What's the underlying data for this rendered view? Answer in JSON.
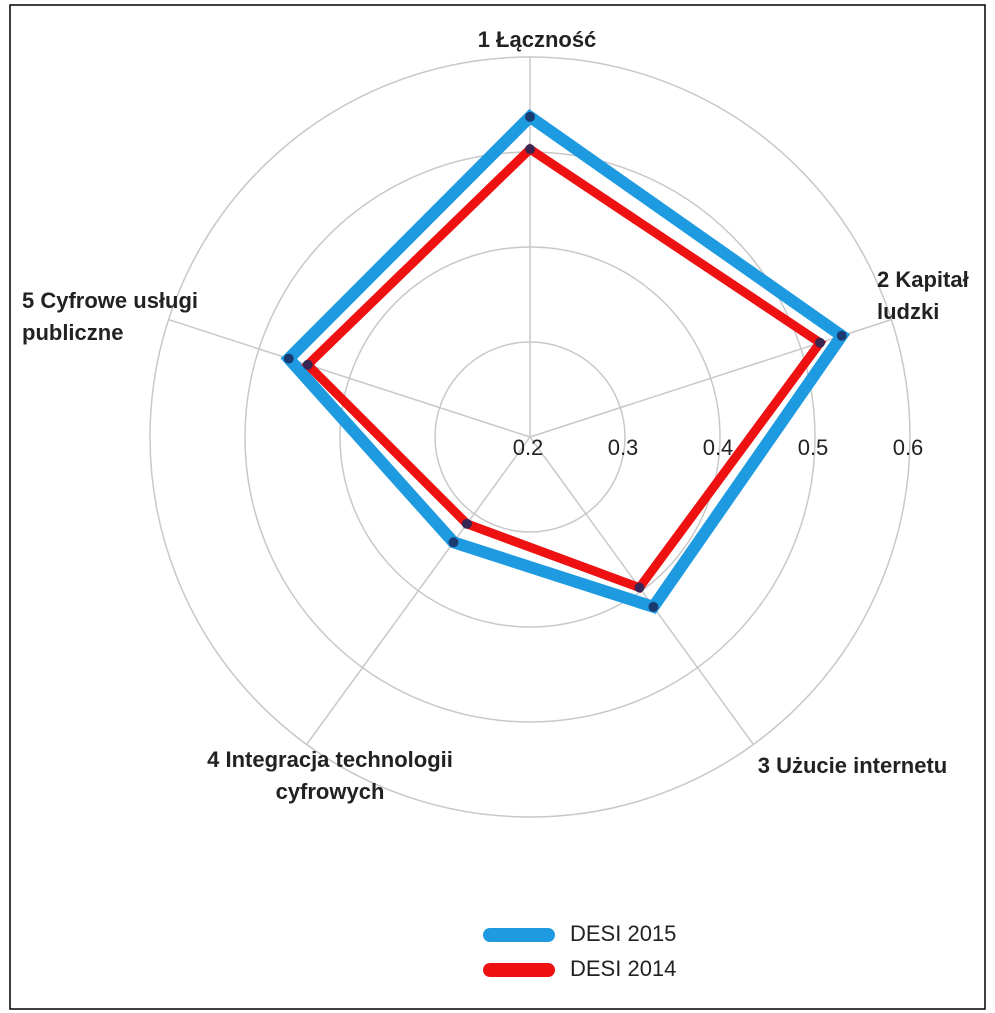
{
  "chart_data": {
    "type": "radar",
    "categories": [
      "1 Łączność",
      "2 Kapitał ludzki",
      "3 Użucie internetu",
      "4 Integracja technologii cyfrowych",
      "5 Cyfrowe usługi publiczne"
    ],
    "series": [
      {
        "name": "DESI 2015",
        "color": "#1e9be0",
        "values": [
          0.537,
          0.545,
          0.421,
          0.337,
          0.467
        ]
      },
      {
        "name": "DESI 2014",
        "color": "#ee1111",
        "values": [
          0.503,
          0.521,
          0.396,
          0.313,
          0.446
        ]
      }
    ],
    "rlim": [
      0.2,
      0.6
    ],
    "rticks": [
      0.2,
      0.3,
      0.4,
      0.5,
      0.6
    ],
    "grid": true,
    "marker_color": "#1a2a5e"
  }
}
